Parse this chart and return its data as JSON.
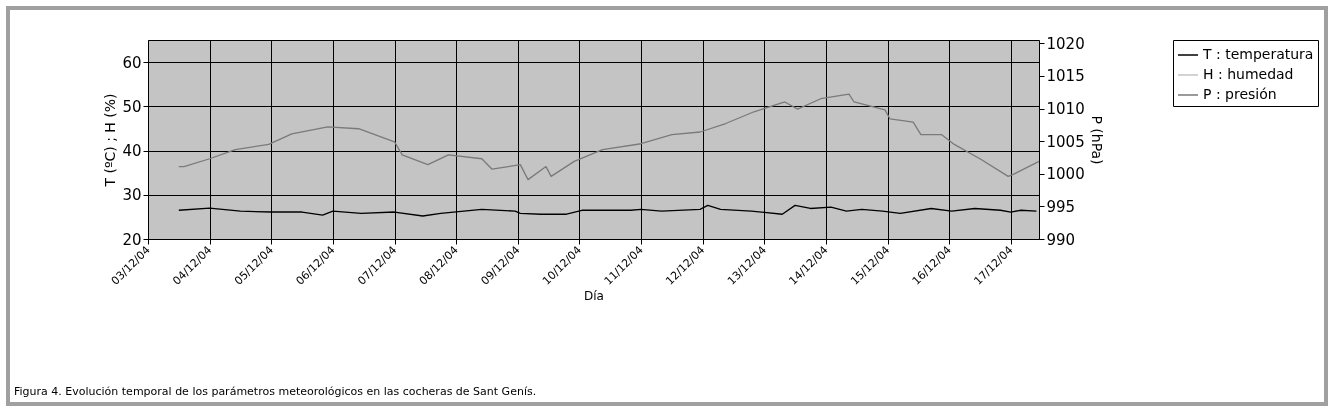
{
  "chart_data": {
    "type": "line",
    "xlabel": "Día",
    "ylabel": "T (ºC) ; H (%)",
    "y2label": "P (hPa)",
    "annotations": [
      "Figura 4. Evolución temporal de los parámetros meteorológicos en las cocheras de Sant Genís."
    ],
    "xlim": [
      "--12-03",
      "--12-17T11:00"
    ],
    "xticks": [
      {
        "value": "--12-03",
        "label": "03/12/04"
      },
      {
        "value": "--12-04",
        "label": "04/12/04"
      },
      {
        "value": "--12-05",
        "label": "05/12/04"
      },
      {
        "value": "--12-06",
        "label": "06/12/04"
      },
      {
        "value": "--12-07",
        "label": "07/12/04"
      },
      {
        "value": "--12-08",
        "label": "08/12/04"
      },
      {
        "value": "--12-09",
        "label": "09/12/04"
      },
      {
        "value": "--12-10",
        "label": "10/12/04"
      },
      {
        "value": "--12-11",
        "label": "11/12/04"
      },
      {
        "value": "--12-12",
        "label": "12/12/04"
      },
      {
        "value": "--12-13",
        "label": "13/12/04"
      },
      {
        "value": "--12-14",
        "label": "14/12/04"
      },
      {
        "value": "--12-15",
        "label": "15/12/04"
      },
      {
        "value": "--12-16",
        "label": "16/12/04"
      },
      {
        "value": "--12-17",
        "label": "17/12/04"
      }
    ],
    "ylim": [
      20,
      65
    ],
    "yticks": [
      20,
      30,
      40,
      50,
      60
    ],
    "y2lim": [
      990,
      1020.5
    ],
    "y2ticks": [
      990,
      995,
      1000,
      1005,
      1010,
      1015,
      1020
    ],
    "grid": true,
    "legend": "top right",
    "series": [
      {
        "name": "T : temperatura",
        "color": "#000000",
        "x": [
          "--12-03T12:00",
          "--12-04T00:00",
          "--12-04T12:00",
          "--12-05T00:00",
          "--12-05T12:00",
          "--12-05T20:00",
          "--12-06T00:00",
          "--12-06T11:00",
          "--12-07T00:00",
          "--12-07T11:00",
          "--12-07T18:00",
          "--12-08T10:00",
          "--12-08T23:00",
          "--12-09T01:00",
          "--12-09T09:00",
          "--12-09T19:00",
          "--12-10T01:00",
          "--12-10T20:00",
          "--12-11T00:00",
          "--12-11T08:00",
          "--12-11T23:00",
          "--12-12T02:00",
          "--12-12T07:00",
          "--12-12T19:00",
          "--12-13T07:00",
          "--12-13T12:00",
          "--12-13T18:00",
          "--12-14T02:00",
          "--12-14T08:00",
          "--12-14T14:00",
          "--12-14T22:00",
          "--12-15T05:00",
          "--12-15T17:00",
          "--12-16T01:00",
          "--12-16T10:00",
          "--12-16T20:00",
          "--12-17T00:00",
          "--12-17T04:00",
          "--12-17T10:00"
        ],
        "values": [
          26.5,
          27.0,
          26.3,
          26.1,
          26.1,
          25.4,
          26.3,
          25.8,
          26.1,
          25.2,
          25.8,
          26.7,
          26.3,
          25.8,
          25.6,
          25.6,
          26.5,
          26.5,
          26.7,
          26.3,
          26.7,
          27.6,
          26.7,
          26.3,
          25.6,
          27.6,
          26.9,
          27.2,
          26.3,
          26.7,
          26.3,
          25.8,
          26.9,
          26.3,
          26.9,
          26.5,
          26.1,
          26.5,
          26.3
        ]
      },
      {
        "name": "H : humedad",
        "color": "#c4c4c4"
      },
      {
        "name": "P : presión",
        "color": "#7a7a7a",
        "axis": "y2",
        "x": [
          "--12-03T12:00",
          "--12-03T14:00",
          "--12-04T00:00",
          "--12-04T10:00",
          "--12-04T23:00",
          "--12-05T08:00",
          "--12-05T22:00",
          "--12-06T10:00",
          "--12-07T00:00",
          "--12-07T03:00",
          "--12-07T13:00",
          "--12-07T21:00",
          "--12-08T10:00",
          "--12-08T14:00",
          "--12-09T01:00",
          "--12-09T04:00",
          "--12-09T11:00",
          "--12-09T13:00",
          "--12-09T22:00",
          "--12-10T09:00",
          "--12-11T00:00",
          "--12-11T12:00",
          "--12-11T23:00",
          "--12-12T09:00",
          "--12-12T20:00",
          "--12-13T08:00",
          "--12-13T13:00",
          "--12-13T22:00",
          "--12-14T09:00",
          "--12-14T11:00",
          "--12-14T23:00",
          "--12-15T01:00",
          "--12-15T10:00",
          "--12-15T13:00",
          "--12-15T21:00",
          "--12-16T02:00",
          "--12-16T12:00",
          "--12-16T23:00",
          "--12-17T01:00",
          "--12-17T11:00"
        ],
        "values": [
          1001.1,
          1001.1,
          1002.3,
          1003.7,
          1004.5,
          1006.1,
          1007.2,
          1006.9,
          1004.9,
          1002.9,
          1001.4,
          1002.9,
          1002.3,
          1000.7,
          1001.4,
          999.1,
          1001.1,
          999.6,
          1001.9,
          1003.7,
          1004.6,
          1006.0,
          1006.4,
          1007.7,
          1009.5,
          1011.0,
          1009.9,
          1011.5,
          1012.2,
          1011.0,
          1009.8,
          1008.4,
          1007.9,
          1006.0,
          1006.0,
          1004.5,
          1002.3,
          999.6,
          999.9,
          1001.9
        ]
      }
    ]
  }
}
